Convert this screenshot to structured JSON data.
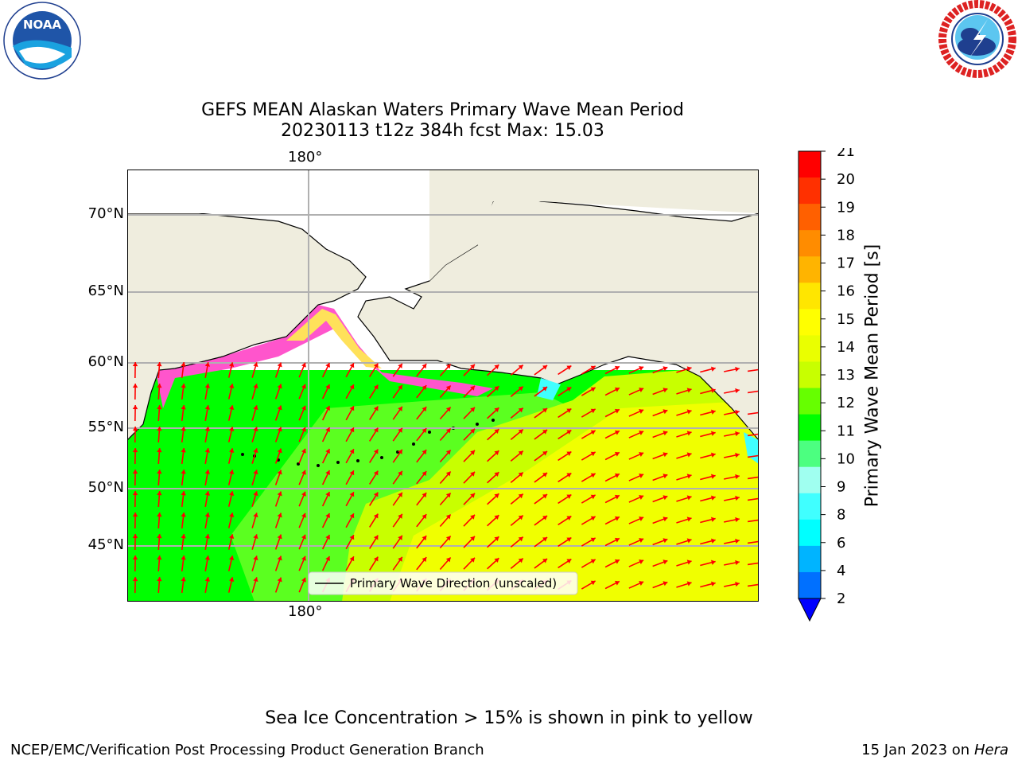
{
  "logos": {
    "noaa": {
      "text": "NOAA",
      "ring_text": "NATIONAL OCEANIC AND ATMOSPHERIC ADMINISTRATION · U.S. DEPARTMENT OF COMMERCE"
    },
    "nws": {
      "ring_text": "NATIONAL WEATHER SERVICE"
    }
  },
  "title": {
    "line1": "GEFS MEAN Alaskan Waters Primary Wave Mean Period",
    "line2": "20230113 t12z 384h fcst   Max: 15.03"
  },
  "axes": {
    "top_longitude": "180°",
    "bottom_longitude": "180°",
    "latitudes": [
      "70°N",
      "65°N",
      "60°N",
      "55°N",
      "50°N",
      "45°N"
    ]
  },
  "legend": {
    "label": "Primary Wave Direction (unscaled)"
  },
  "colorbar": {
    "label": "Primary Wave Mean Period [s]",
    "ticks": [
      "21",
      "20",
      "19",
      "18",
      "17",
      "16",
      "15",
      "14",
      "13",
      "12",
      "11",
      "10",
      "9",
      "8",
      "6",
      "4",
      "2"
    ],
    "colors": [
      "#ff0000",
      "#ff3000",
      "#ff6000",
      "#ff8c00",
      "#ffb400",
      "#ffe600",
      "#ffff00",
      "#eaff00",
      "#c8ff00",
      "#66ff00",
      "#00ff00",
      "#4cff80",
      "#a0fff0",
      "#40ffff",
      "#00ffff",
      "#00b4ff",
      "#0070ff"
    ],
    "under_color": "#0000ff"
  },
  "colors": {
    "land": "#efedde",
    "ocean_green": "#00ff00",
    "ocean_yellow": "#f0ff00",
    "sea_ice_pink": "#ff55cc",
    "sea_ice_yellow": "#ffe15a",
    "arrow": "#ff0000",
    "grid": "#b0b0b0"
  },
  "notes": {
    "sea_ice": "Sea Ice Concentration > 15% is shown in pink to yellow"
  },
  "footer": {
    "left": "NCEP/EMC/Verification Post Processing Product Generation Branch",
    "date": "15 Jan 2023 on",
    "machine": "Hera"
  }
}
